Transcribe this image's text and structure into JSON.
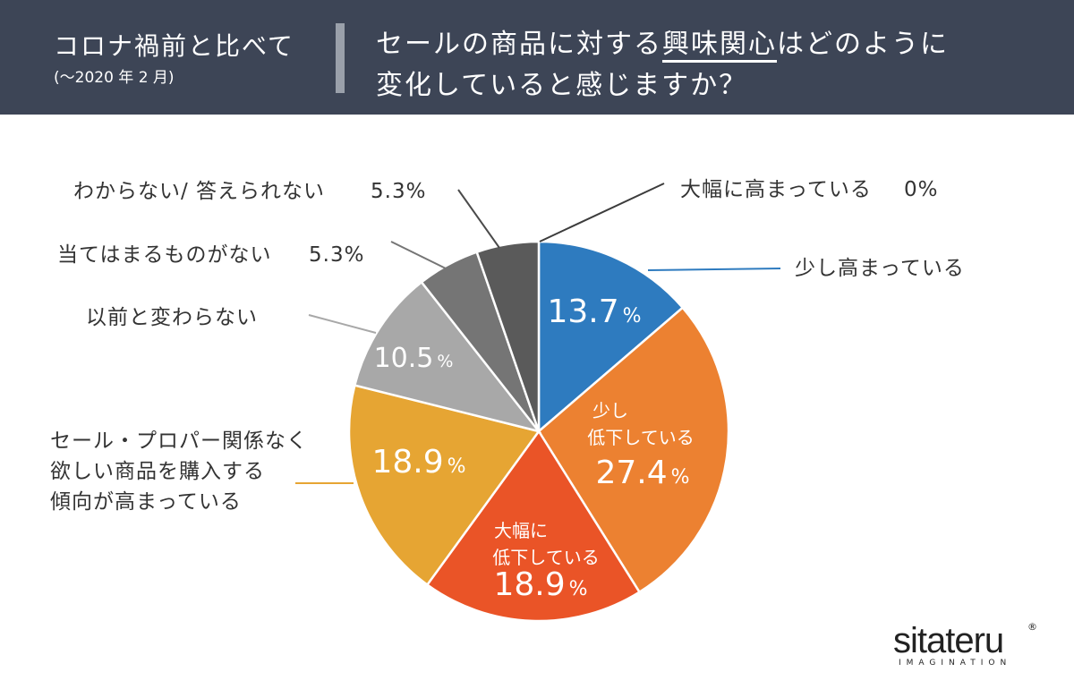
{
  "header": {
    "left_title": "コロナ禍前と比べて",
    "left_subtitle": "(〜2020 年 2 月)",
    "question_line1_pre": "セールの商品に対する",
    "question_line1_emph": "興味関心",
    "question_line1_post": "はどのように",
    "question_line2": "変化していると感じますか？",
    "background_color": "#3d4556"
  },
  "chart_data": {
    "type": "pie",
    "start": "12 o'clock",
    "direction": "clockwise",
    "slices": [
      {
        "label_lines": [
          "少し高まっている"
        ],
        "value": 13.7,
        "display": "13.7",
        "color": "#2e7bbf",
        "inside_label_lines": []
      },
      {
        "label_lines": [
          "少し",
          "低下している"
        ],
        "value": 27.4,
        "display": "27.4",
        "color": "#ec8131",
        "inside_label_lines": [
          "少し",
          "低下している"
        ]
      },
      {
        "label_lines": [
          "大幅に",
          "低下している"
        ],
        "value": 18.9,
        "display": "18.9",
        "color": "#ea5427",
        "inside_label_lines": [
          "大幅に",
          "低下している"
        ]
      },
      {
        "label_lines": [
          "セール・プロパー関係なく",
          "欲しい商品を購入する",
          "傾向が高まっている"
        ],
        "value": 18.9,
        "display": "18.9",
        "color": "#e6a533",
        "inside_label_lines": []
      },
      {
        "label_lines": [
          "以前と変わらない"
        ],
        "value": 10.5,
        "display": "10.5",
        "color": "#a8a8a8",
        "inside_label_lines": []
      },
      {
        "label_lines": [
          "当てはまるものがない"
        ],
        "value": 5.3,
        "display": "5.3%",
        "color": "#757575",
        "inside_label_lines": []
      },
      {
        "label_lines": [
          "わからない/ 答えられない"
        ],
        "value": 5.3,
        "display": "5.3%",
        "color": "#5a5a5a",
        "inside_label_lines": []
      },
      {
        "label_lines": [
          "大幅に高まっている"
        ],
        "value": 0,
        "display": "0%",
        "color": "#3c3c3c",
        "inside_label_lines": []
      }
    ],
    "percent_sign": "%"
  },
  "logo": {
    "wordmark": "sitateru",
    "registered": "®",
    "tagline": "IMAGINATION"
  }
}
